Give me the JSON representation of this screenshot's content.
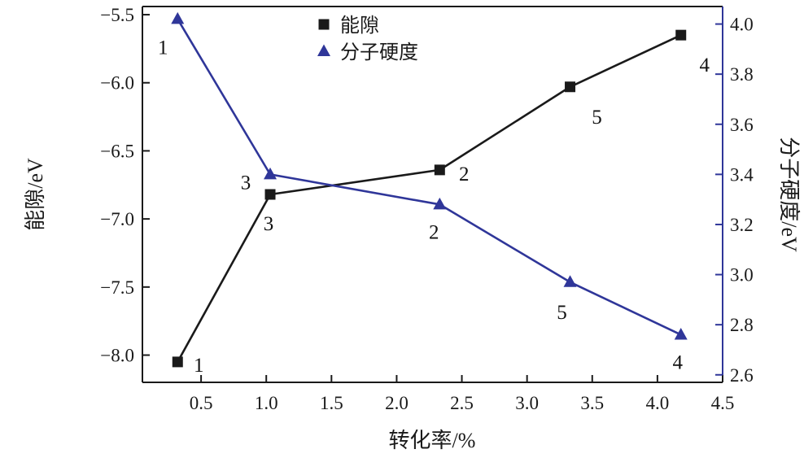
{
  "chart_data": {
    "type": "line",
    "title": "",
    "x_axis": {
      "label": "转化率/%",
      "range": [
        0.05,
        4.5
      ],
      "ticks": [
        {
          "v": 0.5,
          "label": "0.5"
        },
        {
          "v": 1.0,
          "label": "1.0"
        },
        {
          "v": 1.5,
          "label": "1.5"
        },
        {
          "v": 2.0,
          "label": "2.0"
        },
        {
          "v": 2.5,
          "label": "2.5"
        },
        {
          "v": 3.0,
          "label": "3.0"
        },
        {
          "v": 3.5,
          "label": "3.5"
        },
        {
          "v": 4.0,
          "label": "4.0"
        },
        {
          "v": 4.5,
          "label": "4.5"
        }
      ]
    },
    "left_y_axis": {
      "label": "能隙/eV",
      "color": "#1a1a1a",
      "range": [
        -8.2,
        -5.44
      ],
      "ticks": [
        {
          "v": -5.5,
          "label": "−5.5"
        },
        {
          "v": -6.0,
          "label": "−6.0"
        },
        {
          "v": -6.5,
          "label": "−6.5"
        },
        {
          "v": -7.0,
          "label": "−7.0"
        },
        {
          "v": -7.5,
          "label": "−7.5"
        },
        {
          "v": -8.0,
          "label": "−8.0"
        }
      ]
    },
    "right_y_axis": {
      "label": "分子硬度/eV",
      "color": "#2f3699",
      "range": [
        2.57,
        4.07
      ],
      "ticks": [
        {
          "v": 2.6,
          "label": "2.6"
        },
        {
          "v": 2.8,
          "label": "2.8"
        },
        {
          "v": 3.0,
          "label": "3.0"
        },
        {
          "v": 3.2,
          "label": "3.2"
        },
        {
          "v": 3.4,
          "label": "3.4"
        },
        {
          "v": 3.6,
          "label": "3.6"
        },
        {
          "v": 3.8,
          "label": "3.8"
        },
        {
          "v": 4.0,
          "label": "4.0"
        }
      ]
    },
    "legend": [
      {
        "label": "能隙",
        "marker": "square",
        "color": "#1a1a1a"
      },
      {
        "label": "分子硬度",
        "marker": "triangle",
        "color": "#2f3699"
      }
    ],
    "series": [
      {
        "id": "energy-gap",
        "name": "能隙",
        "axis": "left",
        "marker": "square",
        "color": "#1a1a1a",
        "points": [
          {
            "x": 0.32,
            "y": -8.05,
            "label": "1",
            "dx": 26,
            "dy": 12
          },
          {
            "x": 1.03,
            "y": -6.82,
            "label": "3",
            "dx": -2,
            "dy": 44
          },
          {
            "x": 2.33,
            "y": -6.64,
            "label": "2",
            "dx": 30,
            "dy": 13
          },
          {
            "x": 3.33,
            "y": -6.03,
            "label": "5",
            "dx": 33,
            "dy": 45
          },
          {
            "x": 4.18,
            "y": -5.65,
            "label": "4",
            "dx": 29,
            "dy": 45
          }
        ]
      },
      {
        "id": "molecular-hardness",
        "name": "分子硬度",
        "axis": "right",
        "marker": "triangle",
        "color": "#2f3699",
        "points": [
          {
            "x": 0.32,
            "y": 4.02,
            "label": "1",
            "dx": -18,
            "dy": 43
          },
          {
            "x": 1.03,
            "y": 3.4,
            "label": "3",
            "dx": -30,
            "dy": 18
          },
          {
            "x": 2.33,
            "y": 3.28,
            "label": "2",
            "dx": -7,
            "dy": 42
          },
          {
            "x": 3.33,
            "y": 2.97,
            "label": "5",
            "dx": -10,
            "dy": 45
          },
          {
            "x": 4.18,
            "y": 2.76,
            "label": "4",
            "dx": -4,
            "dy": 42
          }
        ]
      }
    ]
  }
}
